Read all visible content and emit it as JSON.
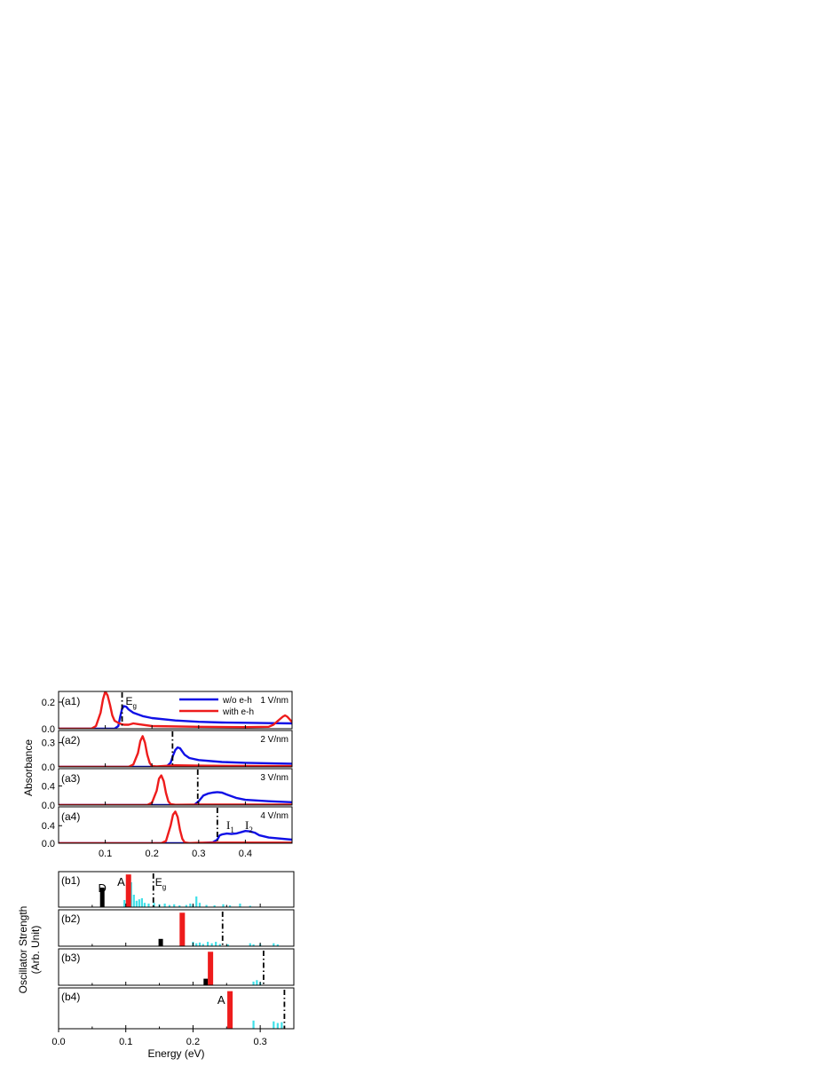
{
  "chart_data": [
    {
      "type": "line",
      "group": "a",
      "ylabel": "Absorbance",
      "xlim": [
        0.0,
        0.5
      ],
      "xticks": [
        0.1,
        0.2,
        0.3,
        0.4
      ],
      "xtick_labels": [
        "0.1",
        "0.2",
        "0.3",
        "0.4"
      ],
      "legend": {
        "placement": "top-right",
        "entries": [
          "w/o e-h",
          "with e-h"
        ]
      },
      "colors": {
        "without": "#1010e6",
        "with": "#ee1c1c",
        "gap": "#000000"
      },
      "panels": [
        {
          "label": "(a1)",
          "field": "1 V/nm",
          "ylim": [
            0,
            0.28
          ],
          "yticks": [
            0.0,
            0.2
          ],
          "ytick_labels": [
            "0.0",
            "0.2"
          ],
          "gap": 0.136,
          "gap_label": "E",
          "gap_label_sub": "g",
          "series": [
            {
              "name": "w/o e-h",
              "x": [
                0.0,
                0.12,
                0.128,
                0.132,
                0.136,
                0.14,
                0.145,
                0.15,
                0.16,
                0.18,
                0.2,
                0.25,
                0.3,
                0.35,
                0.4,
                0.45,
                0.5
              ],
              "y": [
                0.0,
                0.0,
                0.02,
                0.09,
                0.15,
                0.17,
                0.165,
                0.145,
                0.12,
                0.095,
                0.08,
                0.062,
                0.052,
                0.047,
                0.045,
                0.042,
                0.04
              ]
            },
            {
              "name": "with e-h",
              "x": [
                0.0,
                0.07,
                0.08,
                0.09,
                0.095,
                0.1,
                0.105,
                0.11,
                0.115,
                0.12,
                0.13,
                0.14,
                0.15,
                0.16,
                0.17,
                0.2,
                0.3,
                0.4,
                0.45,
                0.46,
                0.47,
                0.48,
                0.485,
                0.49,
                0.5
              ],
              "y": [
                0.0,
                0.0,
                0.02,
                0.12,
                0.22,
                0.28,
                0.25,
                0.18,
                0.1,
                0.06,
                0.04,
                0.03,
                0.03,
                0.04,
                0.035,
                0.02,
                0.015,
                0.012,
                0.015,
                0.03,
                0.06,
                0.09,
                0.1,
                0.09,
                0.05
              ]
            }
          ]
        },
        {
          "label": "(a2)",
          "field": "2 V/nm",
          "ylim": [
            0,
            0.45
          ],
          "yticks": [
            0.0,
            0.3
          ],
          "ytick_labels": [
            "0.0",
            "0.3"
          ],
          "gap": 0.244,
          "series": [
            {
              "name": "w/o e-h",
              "x": [
                0.0,
                0.23,
                0.24,
                0.245,
                0.25,
                0.255,
                0.26,
                0.265,
                0.27,
                0.28,
                0.3,
                0.35,
                0.4,
                0.5
              ],
              "y": [
                0.0,
                0.0,
                0.05,
                0.14,
                0.21,
                0.24,
                0.23,
                0.19,
                0.15,
                0.11,
                0.085,
                0.06,
                0.05,
                0.04
              ]
            },
            {
              "name": "with e-h",
              "x": [
                0.0,
                0.15,
                0.16,
                0.17,
                0.175,
                0.18,
                0.185,
                0.19,
                0.195,
                0.2,
                0.21,
                0.25,
                0.3,
                0.4,
                0.5
              ],
              "y": [
                0.0,
                0.0,
                0.03,
                0.17,
                0.32,
                0.38,
                0.3,
                0.15,
                0.05,
                0.01,
                0.005,
                0.02,
                0.015,
                0.012,
                0.01
              ]
            }
          ]
        },
        {
          "label": "(a3)",
          "field": "3 V/nm",
          "ylim": [
            0,
            0.76
          ],
          "yticks": [
            0.0,
            0.4
          ],
          "ytick_labels": [
            "0.0",
            "0.4"
          ],
          "gap": 0.298,
          "series": [
            {
              "name": "w/o e-h",
              "x": [
                0.0,
                0.29,
                0.3,
                0.31,
                0.32,
                0.33,
                0.34,
                0.35,
                0.36,
                0.38,
                0.4,
                0.45,
                0.5
              ],
              "y": [
                0.0,
                0.0,
                0.08,
                0.2,
                0.24,
                0.26,
                0.27,
                0.26,
                0.22,
                0.15,
                0.11,
                0.08,
                0.06
              ]
            },
            {
              "name": "with e-h",
              "x": [
                0.0,
                0.19,
                0.2,
                0.21,
                0.215,
                0.22,
                0.225,
                0.23,
                0.235,
                0.24,
                0.25,
                0.3,
                0.4,
                0.5
              ],
              "y": [
                0.0,
                0.0,
                0.05,
                0.3,
                0.55,
                0.62,
                0.5,
                0.25,
                0.08,
                0.02,
                0.005,
                0.01,
                0.01,
                0.01
              ]
            }
          ]
        },
        {
          "label": "(a4)",
          "field": "4 V/nm",
          "ylim": [
            0,
            0.83
          ],
          "yticks": [
            0.0,
            0.4
          ],
          "ytick_labels": [
            "0.0",
            "0.4"
          ],
          "gap": 0.34,
          "peak_labels": [
            {
              "text": "I",
              "sub": "1",
              "x": 0.365
            },
            {
              "text": "I",
              "sub": "2",
              "x": 0.405
            }
          ],
          "series": [
            {
              "name": "w/o e-h",
              "x": [
                0.0,
                0.3,
                0.33,
                0.34,
                0.345,
                0.35,
                0.36,
                0.37,
                0.38,
                0.39,
                0.4,
                0.41,
                0.42,
                0.43,
                0.45,
                0.5
              ],
              "y": [
                0.0,
                0.0,
                0.02,
                0.08,
                0.18,
                0.2,
                0.22,
                0.21,
                0.22,
                0.25,
                0.28,
                0.27,
                0.24,
                0.18,
                0.13,
                0.08
              ]
            },
            {
              "name": "with e-h",
              "x": [
                0.0,
                0.22,
                0.23,
                0.24,
                0.245,
                0.25,
                0.255,
                0.26,
                0.265,
                0.27,
                0.28,
                0.3,
                0.4,
                0.5
              ],
              "y": [
                0.0,
                0.0,
                0.05,
                0.4,
                0.65,
                0.72,
                0.6,
                0.3,
                0.1,
                0.02,
                0.005,
                0.01,
                0.015,
                0.015
              ]
            }
          ]
        }
      ]
    },
    {
      "type": "bar",
      "group": "b",
      "ylabel": "Oscillator Strength",
      "ylabel2": "(Arb. Unit)",
      "xlabel": "Energy (eV)",
      "xlim": [
        0.0,
        0.35
      ],
      "xticks": [
        0.0,
        0.1,
        0.2,
        0.3
      ],
      "xtick_labels": [
        "0.0",
        "0.1",
        "0.2",
        "0.3"
      ],
      "colors": {
        "dark": "#000000",
        "bright": "#ee1c1c",
        "other": "#40e0e8"
      },
      "panels": [
        {
          "label": "(b1)",
          "gap": 0.141,
          "gap_label": "E",
          "gap_label_sub": "g",
          "state_labels": [
            {
              "text": "D",
              "x": 0.065
            },
            {
              "text": "A",
              "x": 0.093
            }
          ],
          "dark": [
            {
              "x": 0.065,
              "h": 0.55
            }
          ],
          "bright": [
            {
              "x": 0.104,
              "h": 0.92
            }
          ],
          "other": [
            {
              "x": 0.098,
              "h": 0.2
            },
            {
              "x": 0.108,
              "h": 0.7
            },
            {
              "x": 0.112,
              "h": 0.35
            },
            {
              "x": 0.116,
              "h": 0.18
            },
            {
              "x": 0.12,
              "h": 0.22
            },
            {
              "x": 0.124,
              "h": 0.25
            },
            {
              "x": 0.128,
              "h": 0.12
            },
            {
              "x": 0.134,
              "h": 0.1
            },
            {
              "x": 0.142,
              "h": 0.12
            },
            {
              "x": 0.15,
              "h": 0.08
            },
            {
              "x": 0.158,
              "h": 0.1
            },
            {
              "x": 0.165,
              "h": 0.06
            },
            {
              "x": 0.172,
              "h": 0.08
            },
            {
              "x": 0.18,
              "h": 0.05
            },
            {
              "x": 0.19,
              "h": 0.06
            },
            {
              "x": 0.196,
              "h": 0.1
            },
            {
              "x": 0.2,
              "h": 0.06
            },
            {
              "x": 0.205,
              "h": 0.3
            },
            {
              "x": 0.21,
              "h": 0.12
            },
            {
              "x": 0.22,
              "h": 0.06
            },
            {
              "x": 0.232,
              "h": 0.05
            },
            {
              "x": 0.245,
              "h": 0.08
            },
            {
              "x": 0.255,
              "h": 0.05
            },
            {
              "x": 0.27,
              "h": 0.1
            },
            {
              "x": 0.285,
              "h": 0.04
            }
          ]
        },
        {
          "label": "(b2)",
          "gap": 0.244,
          "dark": [
            {
              "x": 0.152,
              "h": 0.2
            }
          ],
          "bright": [
            {
              "x": 0.184,
              "h": 0.92
            }
          ],
          "other": [
            {
              "x": 0.2,
              "h": 0.12
            },
            {
              "x": 0.205,
              "h": 0.08
            },
            {
              "x": 0.21,
              "h": 0.1
            },
            {
              "x": 0.215,
              "h": 0.06
            },
            {
              "x": 0.222,
              "h": 0.12
            },
            {
              "x": 0.228,
              "h": 0.08
            },
            {
              "x": 0.234,
              "h": 0.12
            },
            {
              "x": 0.24,
              "h": 0.06
            },
            {
              "x": 0.252,
              "h": 0.05
            },
            {
              "x": 0.285,
              "h": 0.08
            },
            {
              "x": 0.29,
              "h": 0.05
            },
            {
              "x": 0.3,
              "h": 0.06
            },
            {
              "x": 0.32,
              "h": 0.08
            },
            {
              "x": 0.326,
              "h": 0.05
            }
          ]
        },
        {
          "label": "(b3)",
          "gap": 0.305,
          "dark": [
            {
              "x": 0.219,
              "h": 0.18
            }
          ],
          "bright": [
            {
              "x": 0.226,
              "h": 0.92
            }
          ],
          "other": [
            {
              "x": 0.29,
              "h": 0.1
            },
            {
              "x": 0.295,
              "h": 0.14
            },
            {
              "x": 0.3,
              "h": 0.08
            }
          ]
        },
        {
          "label": "(b4)",
          "gap": 0.336,
          "state_labels": [
            {
              "text": "A",
              "x": 0.242
            }
          ],
          "dark": [],
          "bright": [
            {
              "x": 0.255,
              "h": 0.92
            }
          ],
          "other": [
            {
              "x": 0.29,
              "h": 0.2
            },
            {
              "x": 0.32,
              "h": 0.18
            },
            {
              "x": 0.326,
              "h": 0.14
            },
            {
              "x": 0.332,
              "h": 0.16
            }
          ]
        }
      ]
    }
  ]
}
